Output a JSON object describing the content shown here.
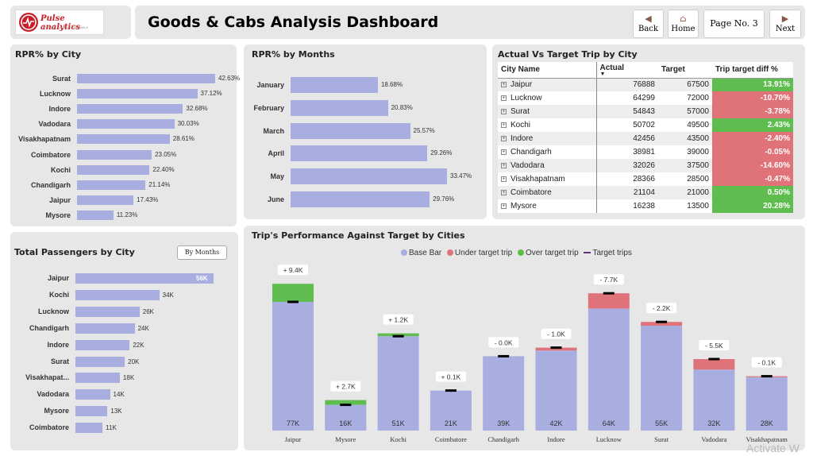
{
  "brand": {
    "name": "Pulse analytics",
    "tagline": "VISUALIZE THE INVISIBLE"
  },
  "header": {
    "title": "Goods & Cabs Analysis Dashboard"
  },
  "nav": {
    "back": "Back",
    "home": "Home",
    "page": "Page No. 3",
    "next": "Next"
  },
  "rpr_city": {
    "title": "RPR% by City",
    "items": [
      {
        "label": "Surat",
        "value": "42.63%"
      },
      {
        "label": "Lucknow",
        "value": "37.12%"
      },
      {
        "label": "Indore",
        "value": "32.68%"
      },
      {
        "label": "Vadodara",
        "value": "30.03%"
      },
      {
        "label": "Visakhapatnam",
        "value": "28.61%"
      },
      {
        "label": "Coimbatore",
        "value": "23.05%"
      },
      {
        "label": "Kochi",
        "value": "22.40%"
      },
      {
        "label": "Chandigarh",
        "value": "21.14%"
      },
      {
        "label": "Jaipur",
        "value": "17.43%"
      },
      {
        "label": "Mysore",
        "value": "11.23%"
      }
    ]
  },
  "rpr_months": {
    "title": "RPR% by Months",
    "items": [
      {
        "label": "January",
        "value": "18.68%"
      },
      {
        "label": "February",
        "value": "20.83%"
      },
      {
        "label": "March",
        "value": "25.57%"
      },
      {
        "label": "April",
        "value": "29.26%"
      },
      {
        "label": "May",
        "value": "33.47%"
      },
      {
        "label": "June",
        "value": "29.76%"
      }
    ]
  },
  "actual_target": {
    "title": "Actual Vs Target Trip by City",
    "headers": [
      "City Name",
      "Actual",
      "Target",
      "Trip target diff %"
    ],
    "rows": [
      {
        "city": "Jaipur",
        "actual": "76888",
        "target": "67500",
        "diff": "13.91%"
      },
      {
        "city": "Lucknow",
        "actual": "64299",
        "target": "72000",
        "diff": "-10.70%"
      },
      {
        "city": "Surat",
        "actual": "54843",
        "target": "57000",
        "diff": "-3.78%"
      },
      {
        "city": "Kochi",
        "actual": "50702",
        "target": "49500",
        "diff": "2.43%"
      },
      {
        "city": "Indore",
        "actual": "42456",
        "target": "43500",
        "diff": "-2.40%"
      },
      {
        "city": "Chandigarh",
        "actual": "38981",
        "target": "39000",
        "diff": "-0.05%"
      },
      {
        "city": "Vadodara",
        "actual": "32026",
        "target": "37500",
        "diff": "-14.60%"
      },
      {
        "city": "Visakhapatnam",
        "actual": "28366",
        "target": "28500",
        "diff": "-0.47%"
      },
      {
        "city": "Coimbatore",
        "actual": "21104",
        "target": "21000",
        "diff": "0.50%"
      },
      {
        "city": "Mysore",
        "actual": "16238",
        "target": "13500",
        "diff": "20.28%"
      }
    ]
  },
  "passengers": {
    "title": "Total Passengers by City",
    "button": "By Months",
    "items": [
      {
        "label": "Jaipur",
        "value": "56K"
      },
      {
        "label": "Kochi",
        "value": "34K"
      },
      {
        "label": "Lucknow",
        "value": "26K"
      },
      {
        "label": "Chandigarh",
        "value": "24K"
      },
      {
        "label": "Indore",
        "value": "22K"
      },
      {
        "label": "Surat",
        "value": "20K"
      },
      {
        "label": "Visakhapat...",
        "value": "18K"
      },
      {
        "label": "Vadodara",
        "value": "14K"
      },
      {
        "label": "Mysore",
        "value": "13K"
      },
      {
        "label": "Coimbatore",
        "value": "11K"
      }
    ]
  },
  "performance": {
    "title": "Trip's Performance Against Target by Cities",
    "legend": [
      "Base Bar",
      "Under target trip",
      "Over target trip",
      "Target trips"
    ]
  },
  "colors": {
    "base": "#a8aee0",
    "under": "#e0737a",
    "over": "#5fbd4f",
    "target": "#000000",
    "panel": "#e7e7e7"
  },
  "chart_data": [
    {
      "type": "bar",
      "title": "RPR% by City",
      "categories": [
        "Surat",
        "Lucknow",
        "Indore",
        "Vadodara",
        "Visakhapatnam",
        "Coimbatore",
        "Kochi",
        "Chandigarh",
        "Jaipur",
        "Mysore"
      ],
      "values": [
        42.63,
        37.12,
        32.68,
        30.03,
        28.61,
        23.05,
        22.4,
        21.14,
        17.43,
        11.23
      ],
      "orientation": "horizontal"
    },
    {
      "type": "bar",
      "title": "RPR% by Months",
      "categories": [
        "January",
        "February",
        "March",
        "April",
        "May",
        "June"
      ],
      "values": [
        18.68,
        20.83,
        25.57,
        29.26,
        33.47,
        29.76
      ],
      "orientation": "horizontal"
    },
    {
      "type": "bar",
      "title": "Total Passengers by City",
      "categories": [
        "Jaipur",
        "Kochi",
        "Lucknow",
        "Chandigarh",
        "Indore",
        "Surat",
        "Visakhapat...",
        "Vadodara",
        "Mysore",
        "Coimbatore"
      ],
      "values": [
        56,
        34,
        26,
        24,
        22,
        20,
        18,
        14,
        13,
        11
      ],
      "unit": "K",
      "orientation": "horizontal"
    },
    {
      "type": "bar",
      "title": "Trip's Performance Against Target by Cities",
      "categories": [
        "Jaipur",
        "Mysore",
        "Kochi",
        "Coimbatore",
        "Chandigarh",
        "Indore",
        "Lucknow",
        "Surat",
        "Vadodara",
        "Visakhapatnam"
      ],
      "series": [
        {
          "name": "Base Bar",
          "values": [
            77,
            16,
            51,
            21,
            39,
            42,
            64,
            55,
            32,
            28
          ]
        },
        {
          "name": "Target trips",
          "values": [
            67.5,
            13.5,
            49.5,
            21.0,
            39.0,
            43.5,
            72.0,
            57.0,
            37.5,
            28.5
          ]
        }
      ],
      "base_labels": [
        "77K",
        "16K",
        "51K",
        "21K",
        "39K",
        "42K",
        "64K",
        "55K",
        "32K",
        "28K"
      ],
      "diff_labels": [
        "+ 9.4K",
        "+ 2.7K",
        "+ 1.2K",
        "+ 0.1K",
        "- 0.0K",
        "- 1.0K",
        "- 7.7K",
        "- 2.2K",
        "- 5.5K",
        "- 0.1K"
      ],
      "unit": "K",
      "ylim": [
        0,
        80
      ]
    }
  ],
  "watermark": "Activate W"
}
